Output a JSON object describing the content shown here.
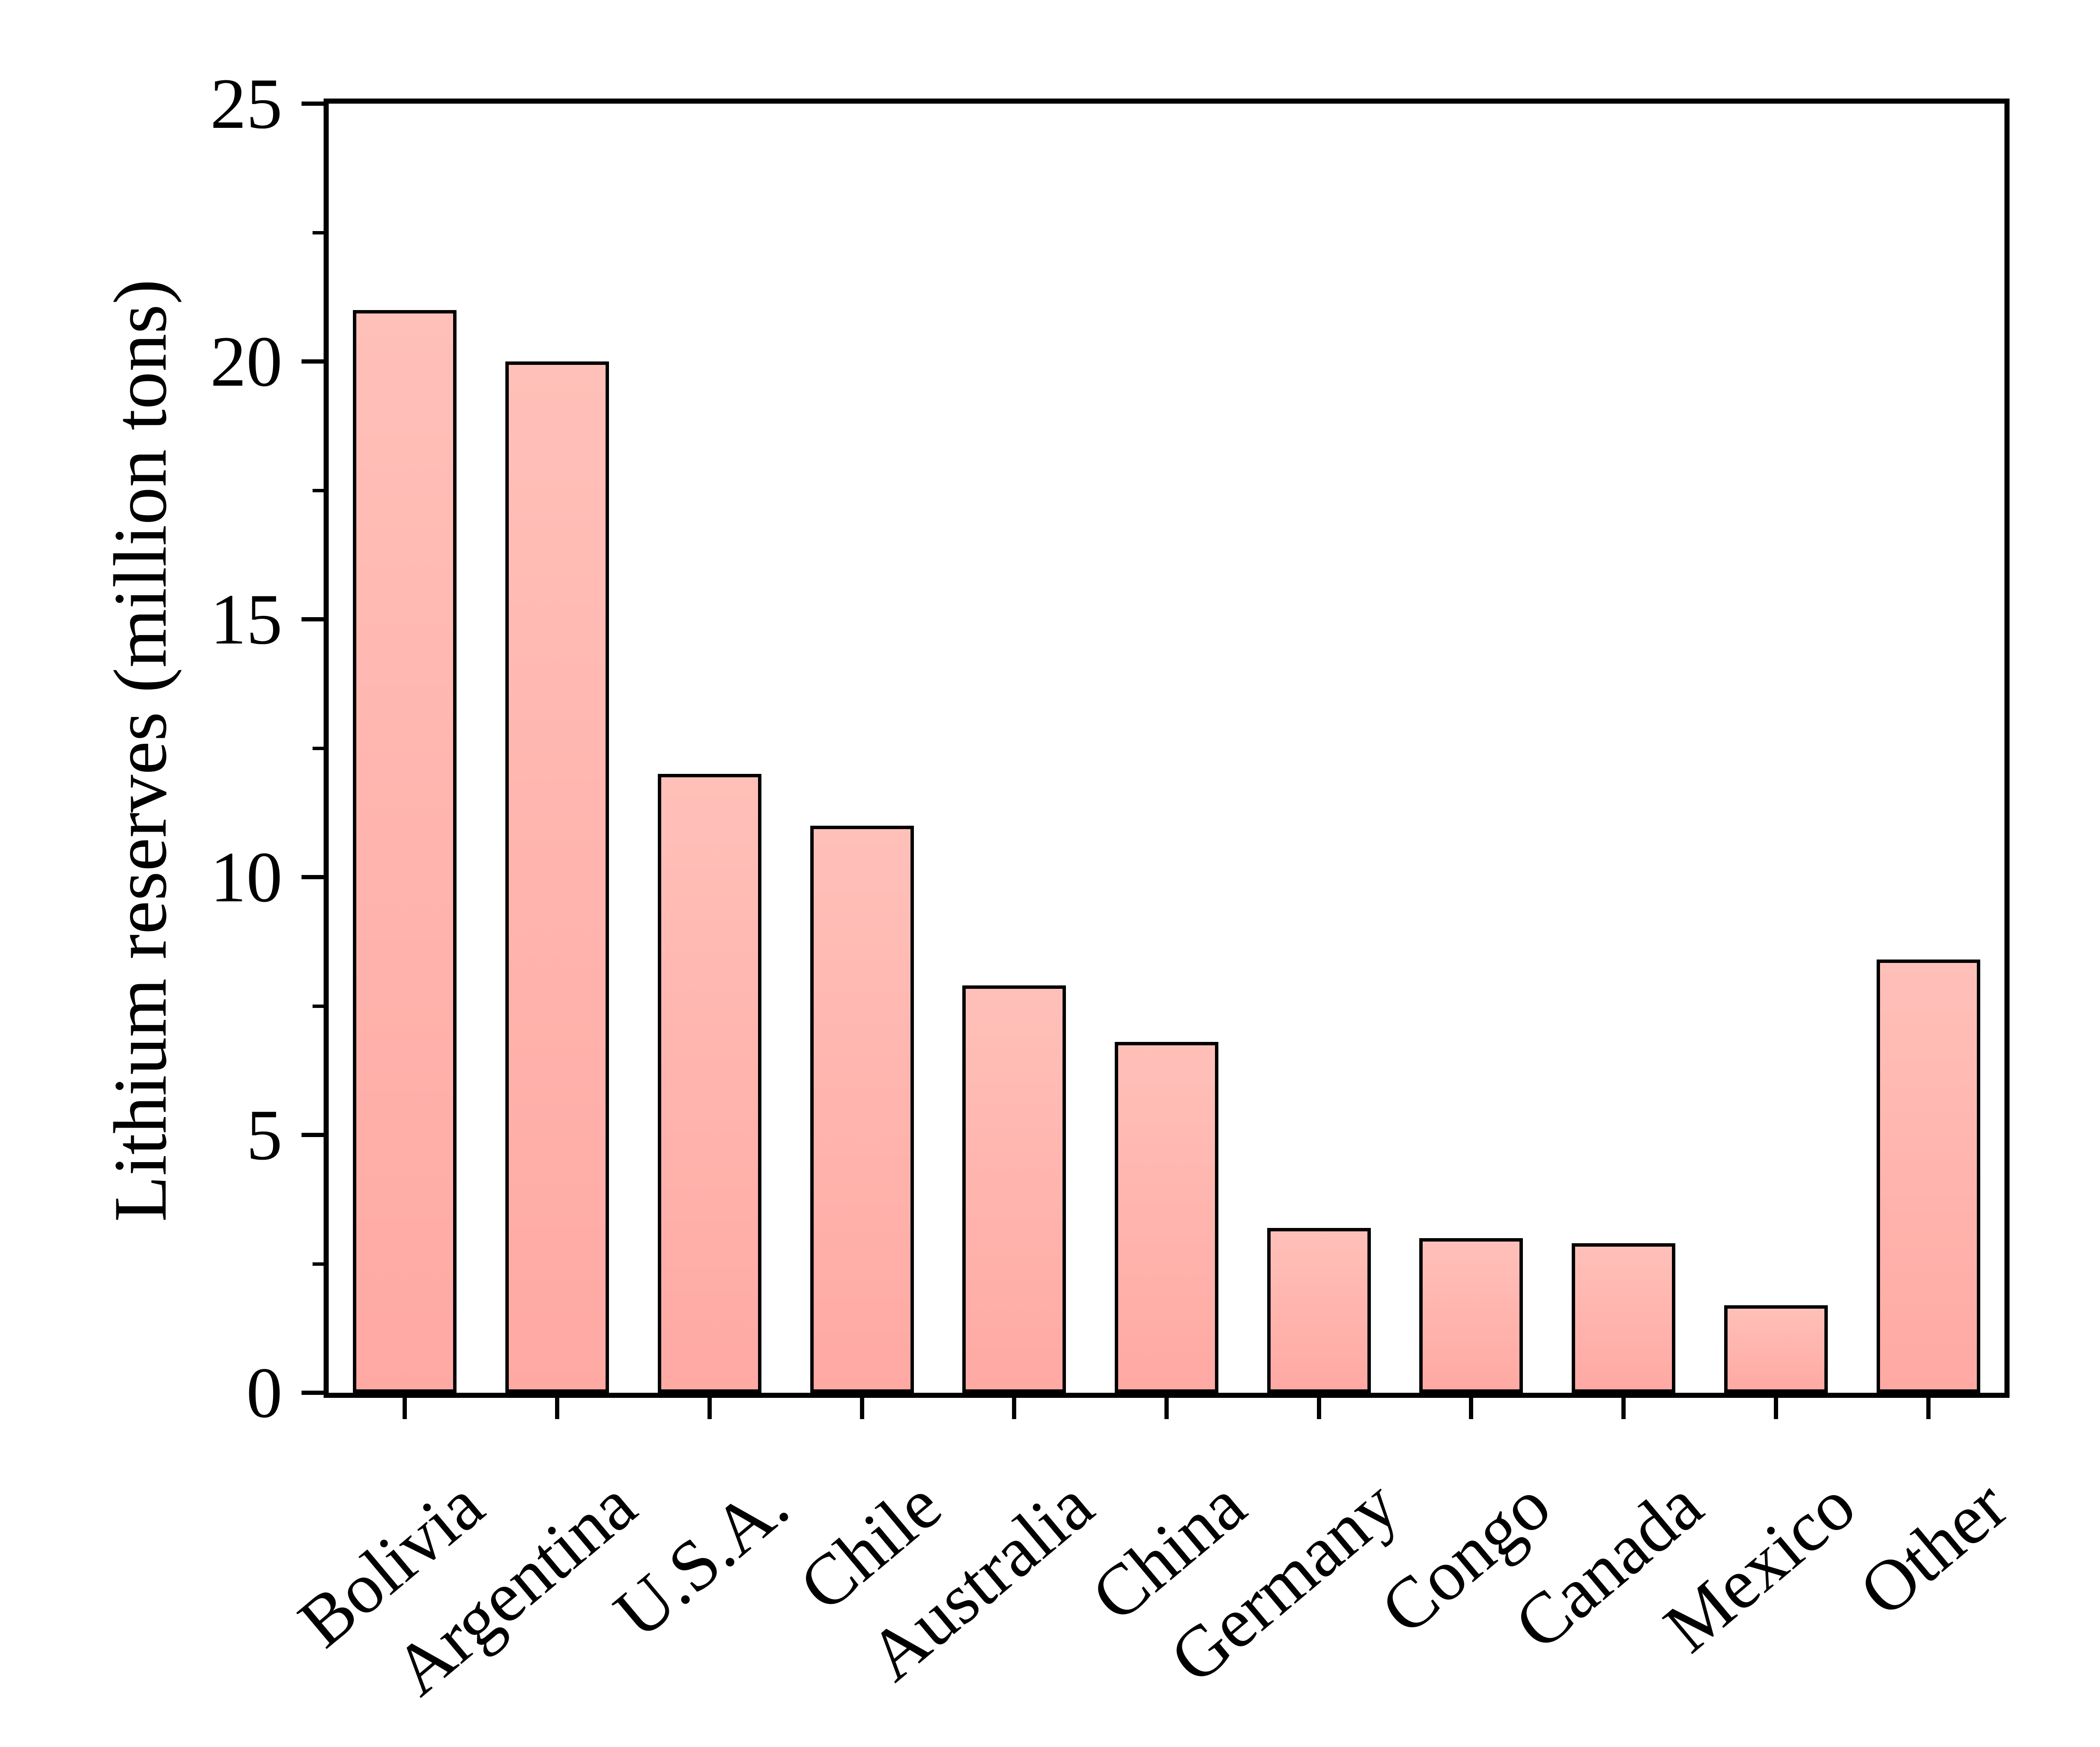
{
  "chart_data": {
    "type": "bar",
    "categories": [
      "Bolivia",
      "Argentina",
      "U.S.A.",
      "Chile",
      "Australia",
      "China",
      "Germany",
      "Congo",
      "Canada",
      "Mexico",
      "Other"
    ],
    "values": [
      21,
      20,
      12,
      11,
      7.9,
      6.8,
      3.2,
      3.0,
      2.9,
      1.7,
      8.4
    ],
    "title": "",
    "xlabel": "",
    "ylabel": "Lithium reserves (million tons)",
    "ylim": [
      0,
      25
    ],
    "y_major_ticks": [
      0,
      5,
      10,
      15,
      20,
      25
    ],
    "y_major_tick_labels": [
      "0",
      "5",
      "10",
      "15",
      "20",
      "25"
    ],
    "y_minor_ticks": [
      2.5,
      7.5,
      12.5,
      17.5,
      22.5
    ],
    "grid": false,
    "legend": "none",
    "bar_fill_top": "#ffc0b9",
    "bar_fill_bottom": "#ffa9a3",
    "bar_border_color": "#000000",
    "axis_color": "#000000",
    "background_color": "#ffffff"
  }
}
